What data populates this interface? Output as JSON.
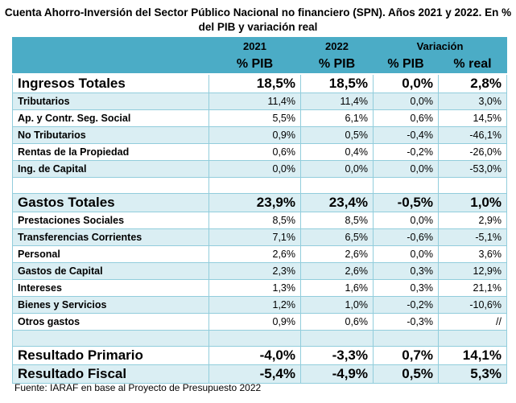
{
  "title": "Cuenta Ahorro-Inversión del Sector Público Nacional no financiero (SPN). Años 2021 y 2022. En % del PIB y variación real",
  "header": {
    "years": [
      "2021",
      "2022",
      "Variación"
    ],
    "units": [
      "% PIB",
      "% PIB",
      "% PIB",
      "% real"
    ]
  },
  "rows": [
    {
      "label": "Ingresos Totales",
      "values": [
        "18,5%",
        "18,5%",
        "0,0%",
        "2,8%"
      ]
    },
    {
      "label": "Tributarios",
      "values": [
        "11,4%",
        "11,4%",
        "0,0%",
        "3,0%"
      ]
    },
    {
      "label": "Ap. y Contr. Seg. Social",
      "values": [
        "5,5%",
        "6,1%",
        "0,6%",
        "14,5%"
      ]
    },
    {
      "label": "No Tributarios",
      "values": [
        "0,9%",
        "0,5%",
        "-0,4%",
        "-46,1%"
      ]
    },
    {
      "label": "Rentas de la Propiedad",
      "values": [
        "0,6%",
        "0,4%",
        "-0,2%",
        "-26,0%"
      ]
    },
    {
      "label": "Ing. de Capital",
      "values": [
        "0,0%",
        "0,0%",
        "0,0%",
        "-53,0%"
      ]
    },
    {
      "label": "Gastos Totales",
      "values": [
        "23,9%",
        "23,4%",
        "-0,5%",
        "1,0%"
      ]
    },
    {
      "label": "Prestaciones Sociales",
      "values": [
        "8,5%",
        "8,5%",
        "0,0%",
        "2,9%"
      ]
    },
    {
      "label": "Transferencias Corrientes",
      "values": [
        "7,1%",
        "6,5%",
        "-0,6%",
        "-5,1%"
      ]
    },
    {
      "label": "Personal",
      "values": [
        "2,6%",
        "2,6%",
        "0,0%",
        "3,6%"
      ]
    },
    {
      "label": "Gastos de Capital",
      "values": [
        "2,3%",
        "2,6%",
        "0,3%",
        "12,9%"
      ]
    },
    {
      "label": "Intereses",
      "values": [
        "1,3%",
        "1,6%",
        "0,3%",
        "21,1%"
      ]
    },
    {
      "label": "Bienes y Servicios",
      "values": [
        "1,2%",
        "1,0%",
        "-0,2%",
        "-10,6%"
      ]
    },
    {
      "label": "Otros gastos",
      "values": [
        "0,9%",
        "0,6%",
        "-0,3%",
        "//"
      ]
    },
    {
      "label": "Resultado Primario",
      "values": [
        "-4,0%",
        "-3,3%",
        "0,7%",
        "14,1%"
      ]
    },
    {
      "label": "Resultado Fiscal",
      "values": [
        "-5,4%",
        "-4,9%",
        "0,5%",
        "5,3%"
      ]
    }
  ],
  "source": "Fuente: IARAF en base al Proyecto de Presupuesto 2022"
}
